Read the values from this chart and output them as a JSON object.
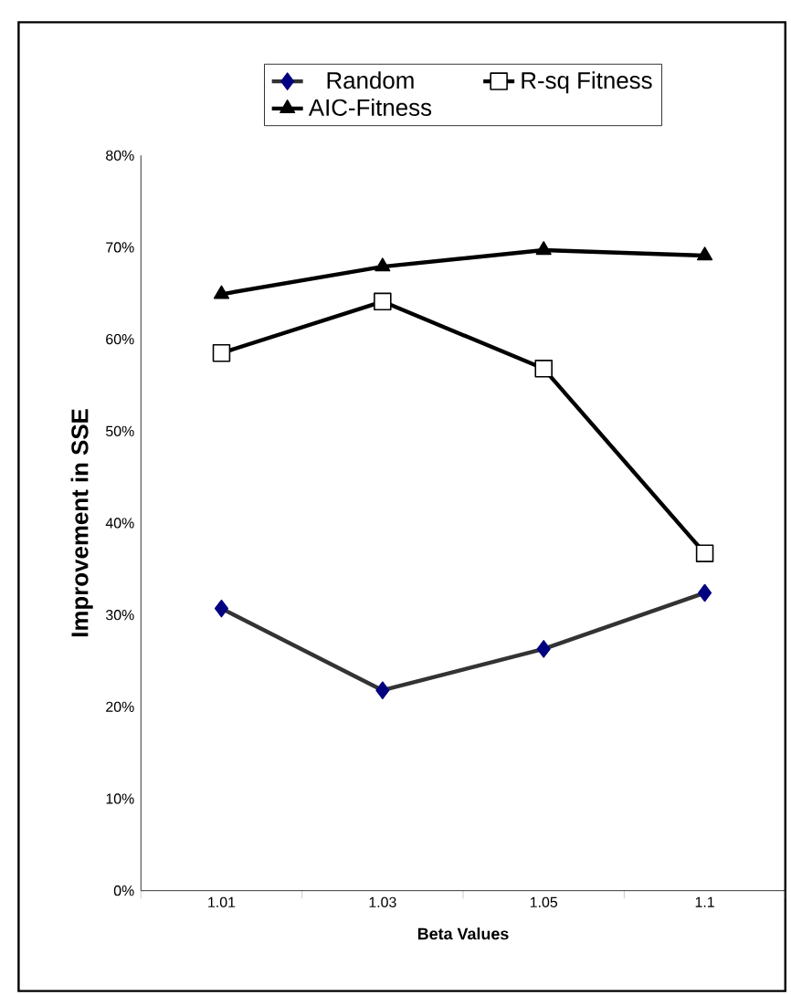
{
  "chart_data": {
    "type": "line",
    "xlabel": "Beta Values",
    "ylabel": "Improvement in SSE",
    "categories": [
      "1.01",
      "1.03",
      "1.05",
      "1.1"
    ],
    "series": [
      {
        "name": "Random",
        "color": "#000080",
        "marker": "diamond",
        "values": [
          30.7,
          21.8,
          26.3,
          32.4
        ]
      },
      {
        "name": "R-sq Fitness",
        "color": "#000000",
        "marker": "square",
        "values": [
          58.5,
          64.1,
          56.8,
          36.7
        ]
      },
      {
        "name": "AIC-Fitness",
        "color": "#000000",
        "marker": "triangle",
        "values": [
          64.9,
          67.9,
          69.7,
          69.1
        ]
      }
    ],
    "ylim": [
      0,
      80
    ],
    "yticks": [
      {
        "value": 0,
        "label": "0%"
      },
      {
        "value": 10,
        "label": "10%"
      },
      {
        "value": 20,
        "label": "20%"
      },
      {
        "value": 30,
        "label": "30%"
      },
      {
        "value": 40,
        "label": "40%"
      },
      {
        "value": 50,
        "label": "50%"
      },
      {
        "value": 60,
        "label": "60%"
      },
      {
        "value": 70,
        "label": "70%"
      },
      {
        "value": 80,
        "label": "80%"
      }
    ],
    "grid": false,
    "legend": "top"
  }
}
